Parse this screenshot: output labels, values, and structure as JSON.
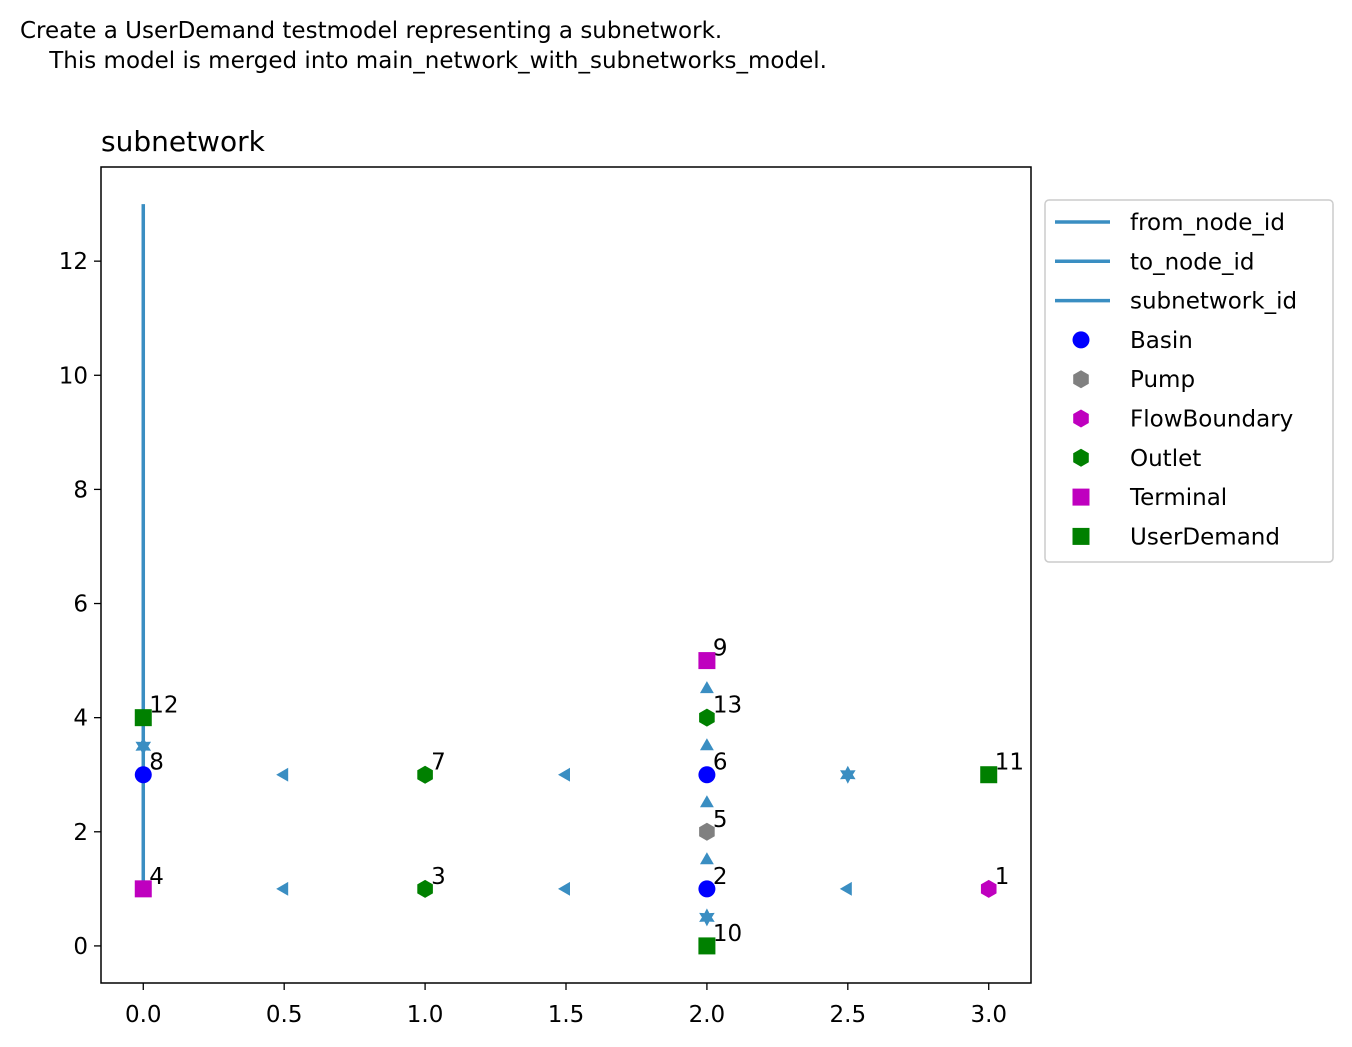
{
  "figure": {
    "title_line1": "Create a UserDemand testmodel representing a subnetwork.",
    "title_line2": "    This model is merged into main_network_with_subnetworks_model."
  },
  "chart_data": {
    "type": "scatter",
    "title": "subnetwork",
    "xlabel": "",
    "ylabel": "",
    "xlim": [
      -0.15,
      3.15
    ],
    "ylim": [
      -0.65,
      13.65
    ],
    "xticks": [
      0.0,
      0.5,
      1.0,
      1.5,
      2.0,
      2.5,
      3.0
    ],
    "xtick_labels": [
      "0.0",
      "0.5",
      "1.0",
      "1.5",
      "2.0",
      "2.5",
      "3.0"
    ],
    "yticks": [
      0,
      2,
      4,
      6,
      8,
      10,
      12
    ],
    "ytick_labels": [
      "0",
      "2",
      "4",
      "6",
      "8",
      "10",
      "12"
    ],
    "grid": false,
    "legend_position": "outside-right",
    "legend": [
      {
        "label": "from_node_id",
        "kind": "line",
        "color": "#3a8ec2"
      },
      {
        "label": "to_node_id",
        "kind": "line",
        "color": "#3a8ec2"
      },
      {
        "label": "subnetwork_id",
        "kind": "line",
        "color": "#3a8ec2"
      },
      {
        "label": "Basin",
        "kind": "circle",
        "color": "#0000ff"
      },
      {
        "label": "Pump",
        "kind": "hexagon",
        "color": "#808080"
      },
      {
        "label": "FlowBoundary",
        "kind": "hexagon",
        "color": "#bf00bf"
      },
      {
        "label": "Outlet",
        "kind": "hexagon",
        "color": "#008000"
      },
      {
        "label": "Terminal",
        "kind": "square",
        "color": "#bf00bf"
      },
      {
        "label": "UserDemand",
        "kind": "square",
        "color": "#008000"
      }
    ],
    "subnetwork_line": {
      "x": [
        0,
        0
      ],
      "y": [
        1,
        13
      ],
      "color": "#3a8ec2"
    },
    "nodes": [
      {
        "id": "1",
        "type": "FlowBoundary",
        "x": 3,
        "y": 1
      },
      {
        "id": "2",
        "type": "Basin",
        "x": 2,
        "y": 1
      },
      {
        "id": "3",
        "type": "Outlet",
        "x": 1,
        "y": 1
      },
      {
        "id": "4",
        "type": "Terminal",
        "x": 0,
        "y": 1
      },
      {
        "id": "5",
        "type": "Pump",
        "x": 2,
        "y": 2
      },
      {
        "id": "6",
        "type": "Basin",
        "x": 2,
        "y": 3
      },
      {
        "id": "7",
        "type": "Outlet",
        "x": 1,
        "y": 3
      },
      {
        "id": "8",
        "type": "Basin",
        "x": 0,
        "y": 3
      },
      {
        "id": "9",
        "type": "Terminal",
        "x": 2,
        "y": 5
      },
      {
        "id": "10",
        "type": "UserDemand",
        "x": 2,
        "y": 0
      },
      {
        "id": "11",
        "type": "UserDemand",
        "x": 3,
        "y": 3
      },
      {
        "id": "12",
        "type": "UserDemand",
        "x": 0,
        "y": 4
      },
      {
        "id": "13",
        "type": "Outlet",
        "x": 2,
        "y": 4
      }
    ],
    "edge_markers": [
      {
        "x": 2.5,
        "y": 1,
        "shape": "triangle-left"
      },
      {
        "x": 1.5,
        "y": 1,
        "shape": "triangle-left"
      },
      {
        "x": 0.5,
        "y": 1,
        "shape": "triangle-left"
      },
      {
        "x": 1.5,
        "y": 3,
        "shape": "triangle-left"
      },
      {
        "x": 0.5,
        "y": 3,
        "shape": "triangle-left"
      },
      {
        "x": 2,
        "y": 1.5,
        "shape": "triangle-up"
      },
      {
        "x": 2,
        "y": 2.5,
        "shape": "triangle-up"
      },
      {
        "x": 2,
        "y": 3.5,
        "shape": "triangle-up"
      },
      {
        "x": 2,
        "y": 4.5,
        "shape": "triangle-up"
      },
      {
        "x": 2,
        "y": 0.5,
        "shape": "star"
      },
      {
        "x": 2.5,
        "y": 3,
        "shape": "star"
      },
      {
        "x": 0,
        "y": 3.5,
        "shape": "star"
      }
    ],
    "edge_color": "#3a8ec2"
  }
}
